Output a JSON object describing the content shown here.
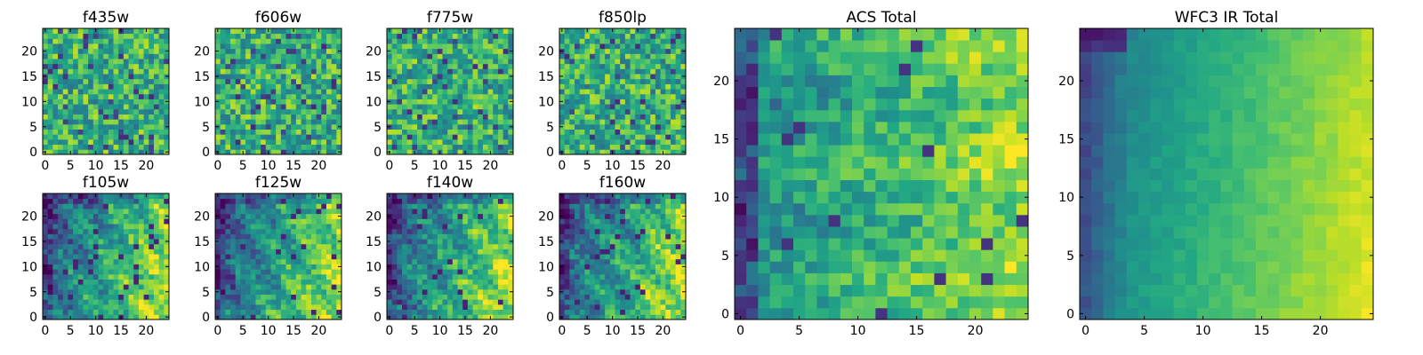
{
  "figure": {
    "background": "#ffffff"
  },
  "chart_data": [
    {
      "type": "heatmap",
      "title": "f435w",
      "grid": false,
      "colormap": "viridis",
      "xticks": [
        0,
        5,
        10,
        15,
        20
      ],
      "yticks": [
        0,
        5,
        10,
        15,
        20
      ],
      "xlim": [
        -0.5,
        24.5
      ],
      "ylim": [
        -0.5,
        24.5
      ],
      "texture": "noise",
      "seed": 11,
      "values_grid": [
        25,
        25
      ]
    },
    {
      "type": "heatmap",
      "title": "f606w",
      "grid": false,
      "colormap": "viridis",
      "xticks": [
        0,
        5,
        10,
        15,
        20
      ],
      "yticks": [
        0,
        5,
        10,
        15,
        20
      ],
      "xlim": [
        -0.5,
        24.5
      ],
      "ylim": [
        -0.5,
        24.5
      ],
      "texture": "noise",
      "seed": 23,
      "values_grid": [
        25,
        25
      ]
    },
    {
      "type": "heatmap",
      "title": "f775w",
      "grid": false,
      "colormap": "viridis",
      "xticks": [
        0,
        5,
        10,
        15,
        20
      ],
      "yticks": [
        0,
        5,
        10,
        15,
        20
      ],
      "xlim": [
        -0.5,
        24.5
      ],
      "ylim": [
        -0.5,
        24.5
      ],
      "texture": "noise",
      "seed": 37,
      "values_grid": [
        25,
        25
      ]
    },
    {
      "type": "heatmap",
      "title": "f850lp",
      "grid": false,
      "colormap": "viridis",
      "xticks": [
        0,
        5,
        10,
        15,
        20
      ],
      "yticks": [
        0,
        5,
        10,
        15,
        20
      ],
      "xlim": [
        -0.5,
        24.5
      ],
      "ylim": [
        -0.5,
        24.5
      ],
      "texture": "noise",
      "seed": 41,
      "values_grid": [
        25,
        25
      ]
    },
    {
      "type": "heatmap",
      "title": "f105w",
      "grid": false,
      "colormap": "viridis",
      "xticks": [
        0,
        5,
        10,
        15,
        20
      ],
      "yticks": [
        0,
        5,
        10,
        15,
        20
      ],
      "xlim": [
        -0.5,
        24.5
      ],
      "ylim": [
        -0.5,
        24.5
      ],
      "texture": "gradient",
      "seed": 53,
      "values_grid": [
        25,
        25
      ]
    },
    {
      "type": "heatmap",
      "title": "f125w",
      "grid": false,
      "colormap": "viridis",
      "xticks": [
        0,
        5,
        10,
        15,
        20
      ],
      "yticks": [
        0,
        5,
        10,
        15,
        20
      ],
      "xlim": [
        -0.5,
        24.5
      ],
      "ylim": [
        -0.5,
        24.5
      ],
      "texture": "gradient",
      "seed": 67,
      "values_grid": [
        25,
        25
      ]
    },
    {
      "type": "heatmap",
      "title": "f140w",
      "grid": false,
      "colormap": "viridis",
      "xticks": [
        0,
        5,
        10,
        15,
        20
      ],
      "yticks": [
        0,
        5,
        10,
        15,
        20
      ],
      "xlim": [
        -0.5,
        24.5
      ],
      "ylim": [
        -0.5,
        24.5
      ],
      "texture": "gradient",
      "seed": 71,
      "values_grid": [
        25,
        25
      ]
    },
    {
      "type": "heatmap",
      "title": "f160w",
      "grid": false,
      "colormap": "viridis",
      "xticks": [
        0,
        5,
        10,
        15,
        20
      ],
      "yticks": [
        0,
        5,
        10,
        15,
        20
      ],
      "xlim": [
        -0.5,
        24.5
      ],
      "ylim": [
        -0.5,
        24.5
      ],
      "texture": "gradient",
      "seed": 83,
      "values_grid": [
        25,
        25
      ]
    },
    {
      "type": "heatmap",
      "title": "ACS Total",
      "grid": false,
      "colormap": "viridis",
      "xticks": [
        0,
        5,
        10,
        15,
        20
      ],
      "yticks": [
        0,
        5,
        10,
        15,
        20
      ],
      "xlim": [
        -0.5,
        24.5
      ],
      "ylim": [
        -0.5,
        24.5
      ],
      "texture": "acs",
      "seed": 97,
      "values_grid": [
        25,
        25
      ]
    },
    {
      "type": "heatmap",
      "title": "WFC3 IR Total",
      "grid": false,
      "colormap": "viridis",
      "xticks": [
        0,
        5,
        10,
        15,
        20
      ],
      "yticks": [
        0,
        5,
        10,
        15,
        20
      ],
      "xlim": [
        -0.5,
        24.5
      ],
      "ylim": [
        -0.5,
        24.5
      ],
      "texture": "ir",
      "seed": 101,
      "values_grid": [
        25,
        25
      ]
    }
  ]
}
